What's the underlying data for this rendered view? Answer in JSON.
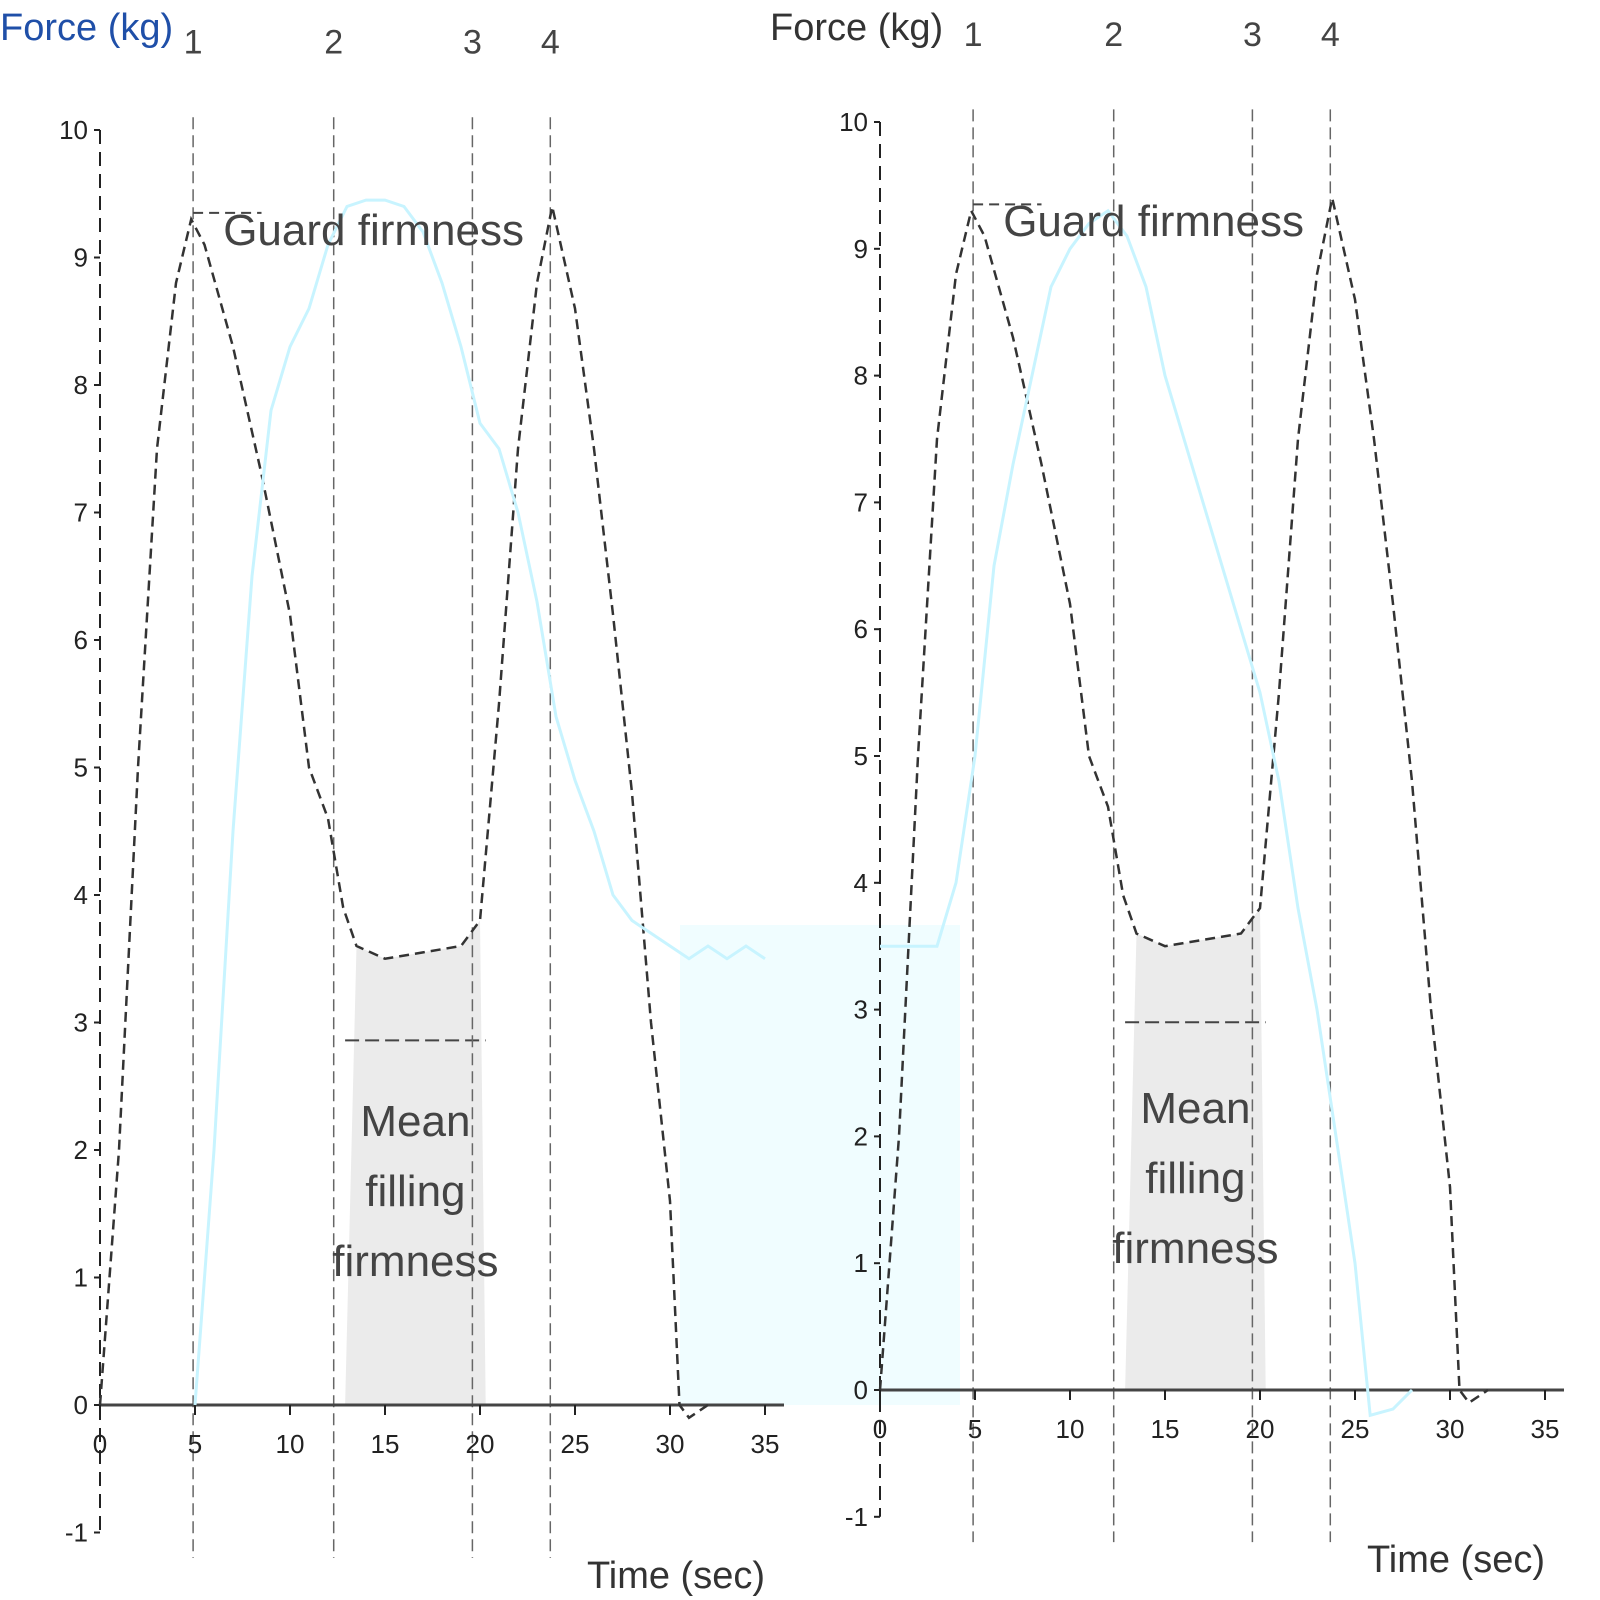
{
  "chart_data": [
    {
      "type": "line",
      "ylabel": "Force (kg)",
      "xlabel": "Time (sec)",
      "xlim": [
        0,
        35
      ],
      "ylim": [
        -1,
        10
      ],
      "xticks": [
        "0",
        "5",
        "10",
        "15",
        "20",
        "25",
        "30",
        "35"
      ],
      "yticks": [
        "-1",
        "0",
        "1",
        "2",
        "3",
        "4",
        "5",
        "6",
        "7",
        "8",
        "9",
        "10"
      ],
      "grid": false,
      "event_markers": [
        {
          "label": "1",
          "x": 4.9
        },
        {
          "label": "2",
          "x": 12.3
        },
        {
          "label": "3",
          "x": 19.6
        },
        {
          "label": "4",
          "x": 23.7
        }
      ],
      "series": [
        {
          "style": "dashed",
          "color": "#333333",
          "points": [
            [
              0,
              0
            ],
            [
              1,
              2
            ],
            [
              2,
              5
            ],
            [
              3,
              7.5
            ],
            [
              4,
              8.8
            ],
            [
              4.8,
              9.3
            ],
            [
              5.5,
              9.1
            ],
            [
              7,
              8.3
            ],
            [
              8.5,
              7.3
            ],
            [
              10,
              6.2
            ],
            [
              11,
              5
            ],
            [
              12,
              4.6
            ],
            [
              12.8,
              3.9
            ],
            [
              13.5,
              3.6
            ],
            [
              15,
              3.5
            ],
            [
              17,
              3.55
            ],
            [
              19,
              3.6
            ],
            [
              20,
              3.8
            ],
            [
              21,
              5.5
            ],
            [
              22,
              7.5
            ],
            [
              23,
              8.8
            ],
            [
              23.8,
              9.4
            ],
            [
              25,
              8.6
            ],
            [
              26,
              7.5
            ],
            [
              27,
              6.2
            ],
            [
              28,
              4.8
            ],
            [
              29,
              3
            ],
            [
              30,
              1.6
            ],
            [
              30.5,
              0
            ],
            [
              31,
              -0.1
            ],
            [
              32,
              0
            ]
          ]
        },
        {
          "style": "solid",
          "color": "#e6fbff",
          "points": [
            [
              5,
              0
            ],
            [
              6,
              2
            ],
            [
              7,
              4.5
            ],
            [
              8,
              6.5
            ],
            [
              9,
              7.8
            ],
            [
              10,
              8.3
            ],
            [
              11,
              8.6
            ],
            [
              12,
              9.1
            ],
            [
              13,
              9.4
            ],
            [
              14,
              9.45
            ],
            [
              15,
              9.45
            ],
            [
              16,
              9.4
            ],
            [
              17,
              9.2
            ],
            [
              18,
              8.8
            ],
            [
              19,
              8.3
            ],
            [
              20,
              7.7
            ],
            [
              21,
              7.5
            ],
            [
              22,
              7
            ],
            [
              23,
              6.3
            ],
            [
              24,
              5.4
            ],
            [
              25,
              4.9
            ],
            [
              26,
              4.5
            ],
            [
              27,
              4
            ],
            [
              28,
              3.8
            ],
            [
              29,
              3.7
            ],
            [
              30,
              3.6
            ],
            [
              31,
              3.5
            ],
            [
              32,
              3.6
            ],
            [
              33,
              3.5
            ],
            [
              34,
              3.6
            ],
            [
              35,
              3.5
            ]
          ]
        }
      ],
      "annotations": {
        "peak_label": "Guard firmness",
        "mean_label": "Mean filling firmness",
        "mean_value": 2.86,
        "shaded_range": [
          12.9,
          20.3
        ]
      }
    },
    {
      "type": "line",
      "ylabel": "Force (kg)",
      "xlabel": "Time (sec)",
      "xlim": [
        0,
        35
      ],
      "ylim": [
        -1,
        10
      ],
      "xticks": [
        "0",
        "5",
        "10",
        "15",
        "20",
        "25",
        "30",
        "35"
      ],
      "yticks": [
        "-1",
        "0",
        "1",
        "2",
        "3",
        "4",
        "5",
        "6",
        "7",
        "8",
        "9",
        "10"
      ],
      "grid": false,
      "event_markers": [
        {
          "label": "1",
          "x": 4.9
        },
        {
          "label": "2",
          "x": 12.3
        },
        {
          "label": "3",
          "x": 19.6
        },
        {
          "label": "4",
          "x": 23.7
        }
      ],
      "series": [
        {
          "style": "dashed",
          "color": "#333333",
          "points": [
            [
              0,
              0
            ],
            [
              1,
              2
            ],
            [
              2,
              5
            ],
            [
              3,
              7.5
            ],
            [
              4,
              8.8
            ],
            [
              4.8,
              9.3
            ],
            [
              5.5,
              9.1
            ],
            [
              7,
              8.3
            ],
            [
              8.5,
              7.3
            ],
            [
              10,
              6.2
            ],
            [
              11,
              5
            ],
            [
              12,
              4.6
            ],
            [
              12.8,
              3.9
            ],
            [
              13.5,
              3.6
            ],
            [
              15,
              3.5
            ],
            [
              17,
              3.55
            ],
            [
              19,
              3.6
            ],
            [
              20,
              3.8
            ],
            [
              21,
              5.5
            ],
            [
              22,
              7.5
            ],
            [
              23,
              8.8
            ],
            [
              23.8,
              9.4
            ],
            [
              25,
              8.6
            ],
            [
              26,
              7.5
            ],
            [
              27,
              6.2
            ],
            [
              28,
              4.8
            ],
            [
              29,
              3
            ],
            [
              30,
              1.6
            ],
            [
              30.5,
              0
            ],
            [
              31,
              -0.1
            ],
            [
              32,
              0
            ]
          ]
        },
        {
          "style": "solid",
          "color": "#e6fbff",
          "points": [
            [
              0,
              3.5
            ],
            [
              3,
              3.5
            ],
            [
              4,
              4
            ],
            [
              5,
              5
            ],
            [
              6,
              6.5
            ],
            [
              7,
              7.3
            ],
            [
              8,
              8
            ],
            [
              9,
              8.7
            ],
            [
              10,
              9
            ],
            [
              11,
              9.2
            ],
            [
              12,
              9.3
            ],
            [
              13,
              9.1
            ],
            [
              14,
              8.7
            ],
            [
              15,
              8
            ],
            [
              16,
              7.5
            ],
            [
              17,
              7
            ],
            [
              18,
              6.5
            ],
            [
              19,
              6
            ],
            [
              20,
              5.5
            ],
            [
              21,
              4.8
            ],
            [
              22,
              3.8
            ],
            [
              23,
              3
            ],
            [
              24,
              2
            ],
            [
              25,
              1
            ],
            [
              25.8,
              -0.2
            ],
            [
              27,
              -0.15
            ],
            [
              28,
              0
            ]
          ]
        }
      ],
      "annotations": {
        "peak_label": "Guard firmness",
        "mean_label": "Mean filling firmness",
        "mean_value": 2.9,
        "shaded_range": [
          12.9,
          20.3
        ]
      }
    }
  ],
  "colors": {
    "axis": "#222222",
    "shade": "#ebebeb",
    "cyan": "#e6fbff",
    "title_blue": "#1f4fa8"
  }
}
